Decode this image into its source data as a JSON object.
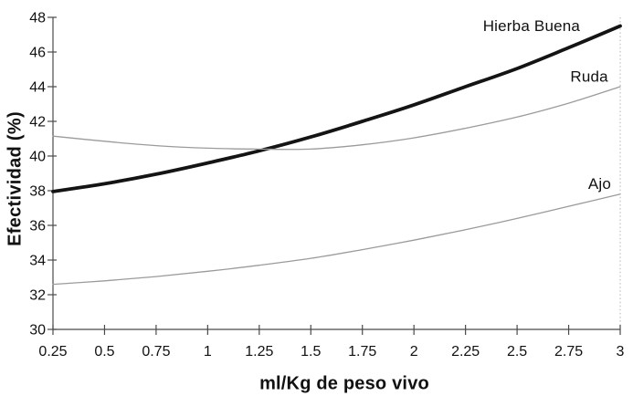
{
  "figure": {
    "background": "#ffffff",
    "axis_color": "#4a4a4a",
    "tick_color": "#4a4a4a",
    "right_border_color": "#b5b5b5",
    "text_color": "#111111"
  },
  "chart_data": {
    "type": "line",
    "title": "",
    "xlabel": "ml/Kg de peso vivo",
    "ylabel": "Efectividad (%)",
    "xlim": [
      0.25,
      3
    ],
    "ylim": [
      30,
      48
    ],
    "grid": false,
    "legend": "inline-labels-near-lines",
    "x": [
      0.25,
      0.5,
      0.75,
      1,
      1.25,
      1.5,
      1.75,
      2,
      2.25,
      2.5,
      2.75,
      3
    ],
    "x_tick_labels": [
      "0.25",
      "0.5",
      "0.75",
      "1",
      "1.25",
      "1.5",
      "1.75",
      "2",
      "2.25",
      "2.5",
      "2.75",
      "3"
    ],
    "y_ticks": [
      30,
      32,
      34,
      36,
      38,
      40,
      42,
      44,
      46,
      48
    ],
    "y_tick_labels": [
      "30",
      "32",
      "34",
      "36",
      "38",
      "40",
      "42",
      "44",
      "46",
      "48"
    ],
    "series": [
      {
        "name": "Hierba Buena",
        "color": "#141414",
        "width": 3.8,
        "values": [
          37.95,
          38.4,
          38.95,
          39.6,
          40.3,
          41.1,
          42.0,
          42.95,
          44.0,
          45.05,
          46.25,
          47.5
        ],
        "label_anchor": {
          "x": 2.57,
          "y": 47.2
        }
      },
      {
        "name": "Ruda",
        "color": "#9b9b9b",
        "width": 1.3,
        "values": [
          41.15,
          40.85,
          40.6,
          40.45,
          40.4,
          40.4,
          40.65,
          41.05,
          41.6,
          42.25,
          43.05,
          44.0
        ],
        "label_anchor": {
          "x": 2.85,
          "y": 44.3
        }
      },
      {
        "name": "Ajo",
        "color": "#9b9b9b",
        "width": 1.3,
        "values": [
          32.6,
          32.8,
          33.05,
          33.35,
          33.7,
          34.1,
          34.6,
          35.15,
          35.75,
          36.4,
          37.1,
          37.8
        ],
        "label_anchor": {
          "x": 2.9,
          "y": 38.1
        }
      }
    ]
  }
}
